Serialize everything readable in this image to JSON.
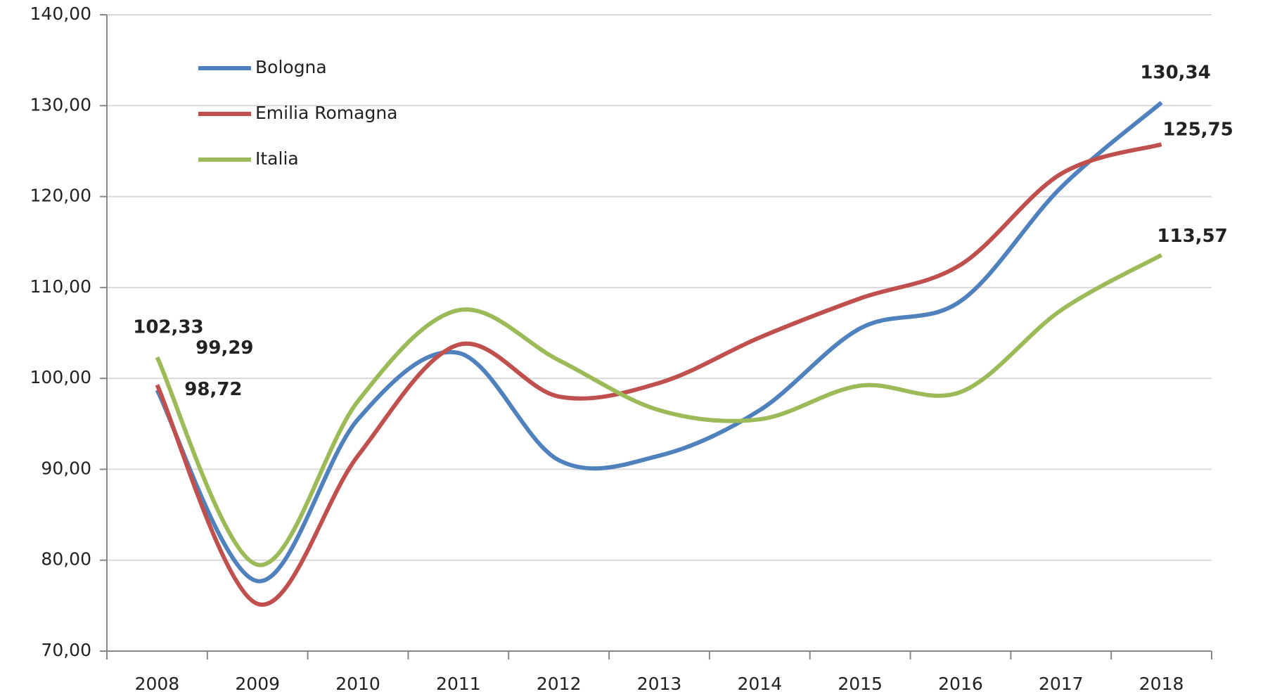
{
  "chart_data": {
    "type": "line",
    "categories": [
      "2008",
      "2009",
      "2010",
      "2011",
      "2012",
      "2013",
      "2014",
      "2015",
      "2016",
      "2017",
      "2018"
    ],
    "series": [
      {
        "name": "Bologna",
        "color": "#4f81bd",
        "values": [
          98.72,
          77.7,
          95.5,
          102.8,
          91.0,
          91.5,
          96.5,
          105.5,
          108.5,
          121.0,
          130.34
        ],
        "value_labels": [
          "98,72",
          null,
          null,
          null,
          null,
          null,
          null,
          null,
          null,
          null,
          "130,34"
        ]
      },
      {
        "name": "Emilia Romagna",
        "color": "#c0504d",
        "values": [
          99.29,
          75.2,
          91.5,
          103.7,
          98.0,
          99.5,
          104.5,
          108.8,
          112.5,
          122.5,
          125.75
        ],
        "value_labels": [
          "99,29",
          null,
          null,
          null,
          null,
          null,
          null,
          null,
          null,
          null,
          "125,75"
        ]
      },
      {
        "name": "Italia",
        "color": "#9bbb59",
        "values": [
          102.33,
          79.5,
          97.5,
          107.5,
          102.0,
          96.5,
          95.5,
          99.2,
          98.5,
          107.5,
          113.57
        ],
        "value_labels": [
          "102,33",
          null,
          null,
          null,
          null,
          null,
          null,
          null,
          null,
          null,
          "113,57"
        ]
      }
    ],
    "ylim": [
      70,
      140
    ],
    "yticks": [
      {
        "value": 70,
        "label": "70,00"
      },
      {
        "value": 80,
        "label": "80,00"
      },
      {
        "value": 90,
        "label": "90,00"
      },
      {
        "value": 100,
        "label": "100,00"
      },
      {
        "value": 110,
        "label": "110,00"
      },
      {
        "value": 120,
        "label": "120,00"
      },
      {
        "value": 130,
        "label": "130,00"
      },
      {
        "value": 140,
        "label": "140,00"
      }
    ],
    "grid": true,
    "legend": "top-left",
    "smooth": true
  }
}
